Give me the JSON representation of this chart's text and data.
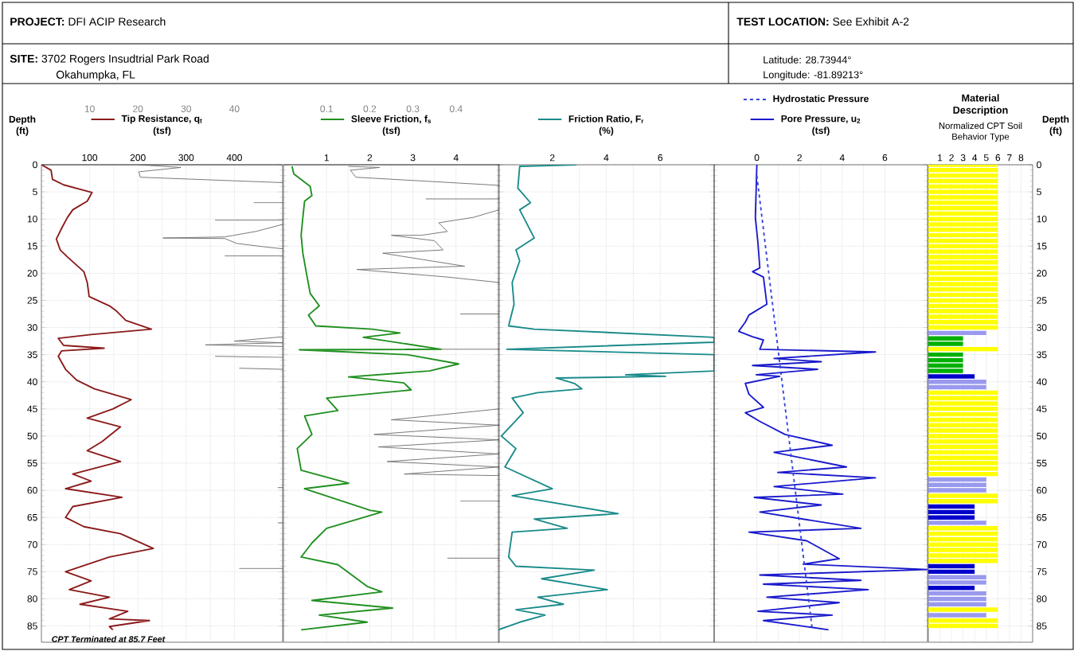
{
  "chart_data": [
    {
      "type": "other",
      "annotations": [
        "**PROJECT:** DFI ACIP Research",
        "**TEST LOCATION:** See Exhibit A-2",
        "**SITE:** 3702 Rogers Insudtrial Park Road",
        "Okahumpka, FL",
        "Latitude: 28.73944°",
        "Longitude: -81.89213°"
      ]
    },
    {
      "type": "line",
      "xlabel": "(tsf)",
      "ylabel": "Depth (ft)",
      "xlim": [
        0,
        500
      ],
      "xticks": [
        100,
        200,
        300,
        400
      ],
      "x2lim": [
        0,
        50
      ],
      "x2ticks": [
        10,
        20,
        30,
        40
      ],
      "ylim": [
        88,
        0
      ],
      "yticks": [
        0,
        5,
        10,
        15,
        20,
        25,
        30,
        35,
        40,
        45,
        50,
        55,
        60,
        65,
        70,
        75,
        80,
        85
      ],
      "grid": true,
      "legend": "top",
      "annotations": [
        "CPT Terminated at 85.7 Feet"
      ],
      "series": [
        {
          "name": "Tip Resistance, q$_{t}$",
          "color": "#8b1a1a",
          "x": [
            0,
            20,
            23,
            46,
            88,
            105,
            95,
            65,
            54,
            42,
            31,
            39,
            54,
            88,
            95,
            99,
            141,
            156,
            175,
            228,
            103,
            35,
            46,
            130,
            42,
            35,
            50,
            73,
            110,
            186,
            148,
            95,
            164,
            126,
            95,
            164,
            65,
            103,
            50,
            167,
            65,
            50,
            88,
            164,
            232,
            141,
            50,
            103,
            58,
            141,
            80,
            179,
            141,
            224,
            141,
            148
          ],
          "values": [
            0,
            1,
            2.7,
            3.7,
            4.7,
            5.1,
            6.7,
            8.3,
            9.7,
            11.7,
            13.7,
            15.7,
            17,
            19.7,
            21.7,
            24.3,
            26,
            27,
            28.7,
            30.3,
            31.3,
            32,
            33.3,
            33.8,
            34.3,
            35.3,
            37.7,
            39.7,
            41.3,
            43.3,
            45,
            46.7,
            48.3,
            51,
            52.7,
            54.7,
            57,
            58.3,
            59.7,
            61.3,
            63,
            65,
            66.7,
            68,
            70.7,
            72.3,
            75,
            76.7,
            78.3,
            79.7,
            81,
            82.3,
            83.7,
            84,
            85.1,
            85.7
          ]
        },
        {
          "axis": "x2",
          "color": "#707070",
          "x": [
            20.2,
            28.9,
            20.2,
            20.5,
            50
          ],
          "values": [
            0,
            0.5,
            1.3,
            2.3,
            3.3
          ]
        },
        {
          "axis": "x2",
          "color": "#707070",
          "x": [
            44,
            50
          ],
          "values": [
            7,
            7
          ]
        },
        {
          "axis": "x2",
          "color": "#707070",
          "x": [
            36,
            50
          ],
          "values": [
            10.2,
            10.2
          ]
        },
        {
          "axis": "x2",
          "color": "#707070",
          "x": [
            50,
            44.4,
            38,
            25.2,
            38,
            40.5,
            45,
            50
          ],
          "values": [
            11,
            12.3,
            13.3,
            13.5,
            13.6,
            14.5,
            15,
            15.5
          ]
        },
        {
          "axis": "x2",
          "color": "#707070",
          "x": [
            38,
            50
          ],
          "values": [
            16.8,
            16.8
          ]
        },
        {
          "axis": "x2",
          "color": "#707070",
          "x": [
            50,
            40,
            50,
            34,
            50
          ],
          "values": [
            31.7,
            32.5,
            32.8,
            33.2,
            33.5
          ]
        },
        {
          "axis": "x2",
          "color": "#707070",
          "x": [
            36,
            50
          ],
          "values": [
            35.3,
            35.5
          ]
        },
        {
          "axis": "x2",
          "color": "#707070",
          "x": [
            41,
            50
          ],
          "values": [
            37.5,
            37.7
          ]
        },
        {
          "axis": "x2",
          "color": "#707070",
          "x": [
            49,
            50
          ],
          "values": [
            59.5,
            59.5
          ]
        },
        {
          "axis": "x2",
          "color": "#707070",
          "x": [
            50,
            49
          ],
          "values": [
            66,
            66
          ]
        },
        {
          "axis": "x2",
          "color": "#707070",
          "x": [
            41,
            50
          ],
          "values": [
            74.4,
            74.4
          ]
        }
      ]
    },
    {
      "type": "line",
      "xlabel": "(tsf)",
      "xlim": [
        0,
        5
      ],
      "xticks": [
        1,
        2,
        3,
        4
      ],
      "x2lim": [
        0,
        0.5
      ],
      "x2ticks": [
        0.1,
        0.2,
        0.3,
        0.4
      ],
      "ylim": [
        88,
        0
      ],
      "yticks": [
        0,
        5,
        10,
        15,
        20,
        25,
        30,
        35,
        40,
        45,
        50,
        55,
        60,
        65,
        70,
        75,
        80,
        85
      ],
      "grid": true,
      "legend": "top",
      "tick_labels": "x",
      "series": [
        {
          "name": "Sleeve Friction, f$_{s}$",
          "color": "#1f8f1f",
          "x": [
            0.2,
            0.24,
            0.62,
            0.66,
            0.49,
            0.45,
            0.41,
            0.45,
            0.54,
            0.62,
            0.83,
            0.58,
            0.75,
            2.06,
            2.7,
            1.85,
            3.65,
            0.37,
            2.87,
            4.06,
            3.38,
            1.51,
            2.79,
            2.96,
            1.0,
            1.26,
            0.49,
            0.66,
            0.32,
            0.41,
            1.51,
            0.49,
            2.02,
            2.28,
            1.0,
            0.66,
            0.41,
            1.26,
            1.94,
            2.28,
            0.66,
            2.53,
            0.83,
            1.94,
            0.41
          ],
          "values": [
            0.3,
            1.7,
            4,
            5.7,
            6.7,
            9.7,
            13,
            16.3,
            20.3,
            23.7,
            26,
            27.7,
            29.7,
            30.3,
            31,
            31.8,
            34,
            34.1,
            35,
            36.7,
            38,
            39.1,
            40.2,
            41.5,
            43,
            45.3,
            46.3,
            49.7,
            52.3,
            56.3,
            58.7,
            59.7,
            63.7,
            64,
            67,
            69.7,
            72.3,
            73.7,
            77.7,
            78.7,
            80.3,
            81.7,
            83,
            84.3,
            85.7
          ]
        },
        {
          "axis": "x2",
          "color": "#707070",
          "x": [
            0.151,
            0.223,
            0.155,
            0.168,
            0.5
          ],
          "values": [
            0.3,
            0.5,
            1,
            2.3,
            3.8
          ]
        },
        {
          "axis": "x2",
          "color": "#707070",
          "x": [
            0.33,
            0.5
          ],
          "values": [
            6.3,
            6.3
          ]
        },
        {
          "axis": "x2",
          "color": "#707070",
          "x": [
            0.5,
            0.44,
            0.36,
            0.38,
            0.32,
            0.25,
            0.35,
            0.37,
            0.23,
            0.42,
            0.17,
            0.38,
            0.5
          ],
          "values": [
            8.3,
            9.7,
            10.7,
            12.3,
            13,
            13,
            14,
            15.7,
            16.3,
            18.7,
            19.3,
            20.7,
            21.7
          ]
        },
        {
          "axis": "x2",
          "color": "#707070",
          "x": [
            0.41,
            0.5
          ],
          "values": [
            27.5,
            27.5
          ]
        },
        {
          "axis": "x2",
          "color": "#707070",
          "x": [
            0.36,
            0.5
          ],
          "values": [
            34,
            34
          ]
        },
        {
          "axis": "x2",
          "color": "#707070",
          "x": [
            0.5,
            0.25,
            0.5,
            0.21,
            0.5,
            0.22,
            0.5,
            0.24,
            0.5,
            0.28,
            0.5
          ],
          "values": [
            45,
            47,
            48,
            49.7,
            50.7,
            52,
            53.3,
            54.7,
            55.7,
            57,
            57.3
          ]
        },
        {
          "axis": "x2",
          "color": "#707070",
          "x": [
            0.41,
            0.5
          ],
          "values": [
            62,
            62
          ]
        },
        {
          "axis": "x2",
          "color": "#707070",
          "x": [
            0.38,
            0.5
          ],
          "values": [
            72.5,
            72.5
          ]
        }
      ]
    },
    {
      "type": "line",
      "xlabel": "(%)",
      "xlim": [
        0,
        8
      ],
      "xticks": [
        2,
        4,
        6
      ],
      "ylim": [
        88,
        0
      ],
      "yticks": [
        0,
        5,
        10,
        15,
        20,
        25,
        30,
        35,
        40,
        45,
        50,
        55,
        60,
        65,
        70,
        75,
        80,
        85
      ],
      "grid": true,
      "legend": "top",
      "tick_labels": "x",
      "series": [
        {
          "name": "Friction Ratio, F$_{r}$",
          "color": "#1a8a8a",
          "x": [
            2.9,
            0.79,
            0.72,
            1.19,
            0.79,
            1.33,
            0.65,
            0.79,
            0.51,
            0.58,
            0.38,
            1.33,
            8,
            8,
            0.31,
            8,
            8,
            4.72,
            6.2,
            2.14,
            2.82,
            3.09,
            1.46,
            0.51,
            0.92,
            0.11,
            0.65,
            0.24,
            2.0,
            0.51,
            4.44,
            1.33,
            2.55,
            0.51,
            0.38,
            0.65,
            3.56,
            1.6,
            4.04,
            1.46,
            2.41,
            0.65,
            1.73,
            0.79,
            0
          ],
          "values": [
            0,
            0.3,
            4.3,
            7,
            8.3,
            13.5,
            15.7,
            17.7,
            21.7,
            25.7,
            29.7,
            30.3,
            31.8,
            32.7,
            34,
            35,
            38,
            38.7,
            39,
            39.3,
            40.3,
            41.3,
            42,
            43,
            45.7,
            50,
            52.3,
            55.7,
            59.7,
            61,
            64.3,
            65.3,
            67,
            67.7,
            72.3,
            74,
            74.7,
            76.3,
            78.3,
            79.7,
            81,
            82,
            83,
            84.3,
            85.7
          ]
        }
      ]
    },
    {
      "type": "line",
      "xlabel": "(tsf)",
      "xlim": [
        -2,
        8
      ],
      "xticks": [
        0,
        2,
        4,
        6
      ],
      "ylim": [
        88,
        0
      ],
      "yticks": [
        0,
        5,
        10,
        15,
        20,
        25,
        30,
        35,
        40,
        45,
        50,
        55,
        60,
        65,
        70,
        75,
        80,
        85
      ],
      "grid": true,
      "legend": "top",
      "tick_labels": "x",
      "series": [
        {
          "name": "Pore Pressure, u$_{2}$",
          "color": "#1a1acc",
          "x": [
            0,
            -0.03,
            -0.07,
            0.05,
            0.14,
            -0.2,
            0.31,
            0.47,
            -0.37,
            -0.54,
            -0.85,
            -0.2,
            0.31,
            0.14,
            5.56,
            0.81,
            3.02,
            -0.2,
            2.85,
            -0.03,
            1.07,
            -0.54,
            -0.37,
            0.31,
            -0.54,
            0.14,
            1.32,
            3.53,
            0.81,
            4.2,
            0.98,
            5.56,
            0.81,
            4.03,
            -0.12,
            3.02,
            0.14,
            2.17,
            4.88,
            -0.37,
            2.34,
            3.86,
            2.17,
            8,
            0.14,
            4.88,
            0.31,
            5.22,
            0.47,
            3.86,
            0.05,
            3.53,
            0.31,
            3.36
          ],
          "values": [
            0,
            4.3,
            9.7,
            14.3,
            19,
            19.7,
            20.7,
            25.7,
            27.7,
            29,
            30.7,
            31.7,
            32.3,
            34,
            34.5,
            35.7,
            36.3,
            37,
            37.7,
            38.7,
            39,
            40.3,
            42.3,
            44.7,
            45.7,
            47.3,
            49.7,
            51.7,
            53,
            55.7,
            56.7,
            57.7,
            59.3,
            60.7,
            61.3,
            62.7,
            64,
            65.3,
            67,
            67.7,
            69.3,
            72.6,
            73.6,
            74.6,
            75.6,
            76.6,
            77.3,
            78.3,
            79.7,
            80.7,
            82.3,
            83,
            84,
            85.7
          ]
        },
        {
          "name": "Hydrostatic Pressure",
          "color": "#3344dd",
          "line_style": "dashed",
          "x": [
            0,
            2.6
          ],
          "values": [
            2,
            85.7
          ]
        }
      ]
    },
    {
      "type": "bar",
      "orientation": "horizontal",
      "title": "Material Description",
      "subtitle": "Normalized CPT Soil Behavior Type",
      "ylabel": "Depth (ft)",
      "xlim": [
        0,
        9
      ],
      "xticks": [
        1,
        2,
        3,
        4,
        5,
        6,
        7,
        8
      ],
      "grid": true,
      "categories": [
        "0",
        null,
        null,
        null,
        null,
        "5",
        null,
        null,
        null,
        null,
        "10",
        null,
        null,
        null,
        null,
        "15",
        null,
        null,
        null,
        null,
        "20",
        null,
        null,
        null,
        null,
        "25",
        null,
        null,
        null,
        null,
        "30",
        null,
        null,
        null,
        null,
        "35",
        null,
        null,
        null,
        null,
        "40",
        null,
        null,
        null,
        null,
        "45",
        null,
        null,
        null,
        null,
        "50",
        null,
        null,
        null,
        null,
        "55",
        null,
        null,
        null,
        null,
        "60",
        null,
        null,
        null,
        null,
        "65",
        null,
        null,
        null,
        null,
        "70",
        null,
        null,
        null,
        null,
        "75",
        null,
        null,
        null,
        null,
        "80",
        null,
        null,
        null,
        null,
        "85"
      ],
      "values": [
        6,
        6,
        6,
        6,
        6,
        6,
        6,
        6,
        6,
        6,
        6,
        6,
        6,
        6,
        6,
        6,
        6,
        6,
        6,
        6,
        6,
        6,
        6,
        6,
        6,
        6,
        6,
        6,
        6,
        6,
        6,
        5,
        3,
        3,
        6,
        3,
        3,
        3,
        3,
        4,
        5,
        5,
        6,
        6,
        6,
        6,
        6,
        6,
        6,
        6,
        6,
        6,
        6,
        6,
        6,
        6,
        6,
        6,
        5,
        5,
        5,
        6,
        6,
        4,
        4,
        4,
        5,
        6,
        6,
        6,
        6,
        6,
        6,
        6,
        4,
        4,
        5,
        5,
        4,
        5,
        5,
        5,
        6,
        5,
        6,
        6
      ],
      "colors": [
        "#ffff00",
        "#ffff00",
        "#ffff00",
        "#ffff00",
        "#ffff00",
        "#ffff00",
        "#ffff00",
        "#ffff00",
        "#ffff00",
        "#ffff00",
        "#ffff00",
        "#ffff00",
        "#ffff00",
        "#ffff00",
        "#ffff00",
        "#ffff00",
        "#ffff00",
        "#ffff00",
        "#ffff00",
        "#ffff00",
        "#ffff00",
        "#ffff00",
        "#ffff00",
        "#ffff00",
        "#ffff00",
        "#ffff00",
        "#ffff00",
        "#ffff00",
        "#ffff00",
        "#ffff00",
        "#ffff00",
        "#9999ee",
        "#00b000",
        "#00b000",
        "#ffff00",
        "#00b000",
        "#00b000",
        "#00b000",
        "#00b000",
        "#0000cc",
        "#9999ee",
        "#9999ee",
        "#ffff00",
        "#ffff00",
        "#ffff00",
        "#ffff00",
        "#ffff00",
        "#ffff00",
        "#ffff00",
        "#ffff00",
        "#ffff00",
        "#ffff00",
        "#ffff00",
        "#ffff00",
        "#ffff00",
        "#ffff00",
        "#ffff00",
        "#ffff00",
        "#9999ee",
        "#9999ee",
        "#9999ee",
        "#ffff00",
        "#ffff00",
        "#0000cc",
        "#0000cc",
        "#0000cc",
        "#9999ee",
        "#ffff00",
        "#ffff00",
        "#ffff00",
        "#ffff00",
        "#ffff00",
        "#ffff00",
        "#ffff00",
        "#0000cc",
        "#0000cc",
        "#9999ee",
        "#9999ee",
        "#0000cc",
        "#9999ee",
        "#9999ee",
        "#9999ee",
        "#ffff00",
        "#9999ee",
        "#ffff00",
        "#ffff00"
      ]
    }
  ]
}
